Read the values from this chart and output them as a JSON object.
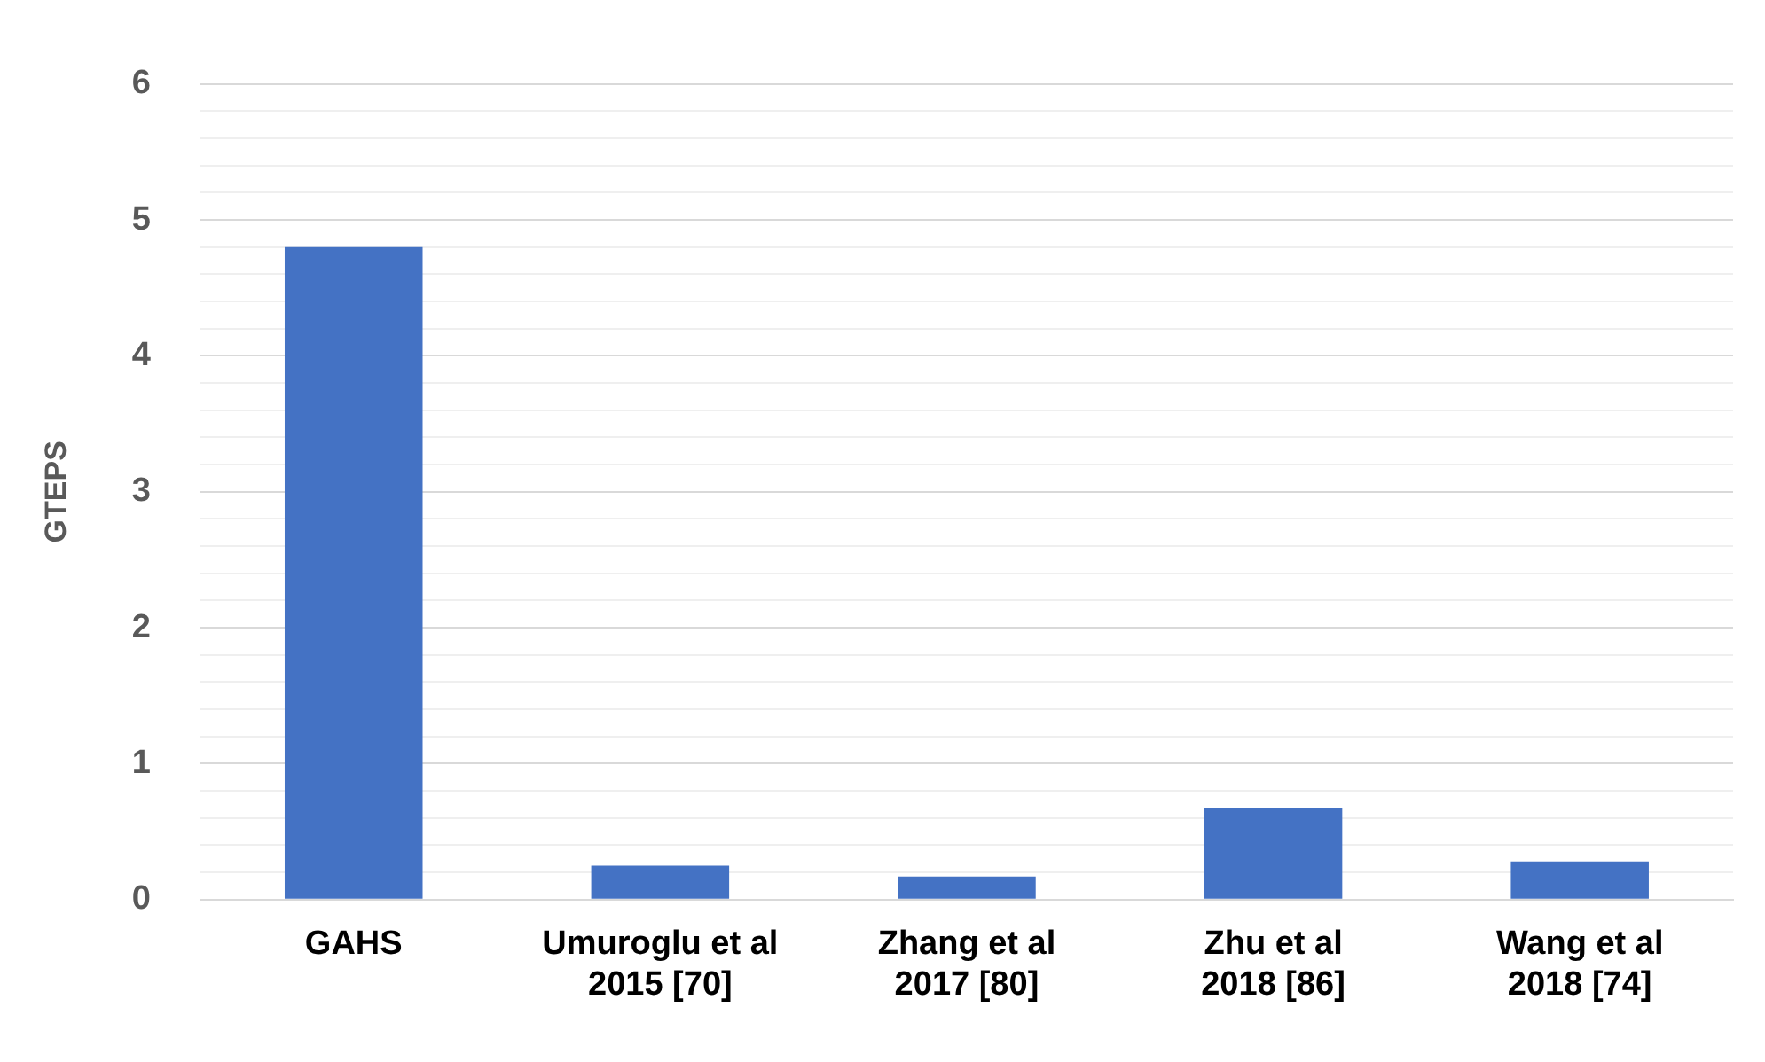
{
  "chart_data": {
    "type": "bar",
    "ylabel": "GTEPS",
    "categories": [
      "GAHS",
      "Umuroglu et al\n2015 [70]",
      "Zhang et al\n2017 [80]",
      "Zhu et al\n2018 [86]",
      "Wang et al\n2018 [74]"
    ],
    "values": [
      4.8,
      0.25,
      0.17,
      0.67,
      0.28
    ],
    "color": "#4472c4",
    "ylim": [
      0,
      6
    ],
    "yticks": [
      0,
      {
        "value": 0.2,
        "label": null
      },
      {
        "value": 0.4,
        "label": null
      },
      {
        "value": 0.6,
        "label": null
      },
      {
        "value": 0.8,
        "label": null
      },
      1,
      {
        "value": 1.2,
        "label": null
      },
      {
        "value": 1.4,
        "label": null
      },
      {
        "value": 1.6,
        "label": null
      },
      {
        "value": 1.8,
        "label": null
      },
      2,
      {
        "value": 2.2,
        "label": null
      },
      {
        "value": 2.4,
        "label": null
      },
      {
        "value": 2.6,
        "label": null
      },
      {
        "value": 2.8,
        "label": null
      },
      3,
      {
        "value": 3.2,
        "label": null
      },
      {
        "value": 3.4,
        "label": null
      },
      {
        "value": 3.6,
        "label": null
      },
      {
        "value": 3.8,
        "label": null
      },
      4,
      {
        "value": 4.2,
        "label": null
      },
      {
        "value": 4.4,
        "label": null
      },
      {
        "value": 4.6,
        "label": null
      },
      {
        "value": 4.8,
        "label": null
      },
      5,
      {
        "value": 5.2,
        "label": null
      },
      {
        "value": 5.4,
        "label": null
      },
      {
        "value": 5.6,
        "label": null
      },
      {
        "value": 5.8,
        "label": null
      },
      6
    ],
    "grid": "y",
    "legend": false
  }
}
